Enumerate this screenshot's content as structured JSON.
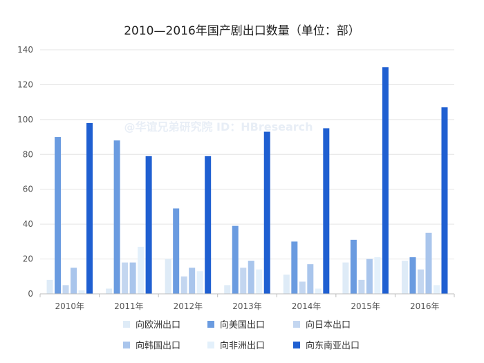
{
  "chart_data": {
    "type": "bar",
    "title": "2010—2016年国产剧出口数量（单位：部）",
    "watermark": "@华谊兄弟研究院 ID：HBresearch",
    "categories": [
      "2010年",
      "2011年",
      "2012年",
      "2013年",
      "2014年",
      "2015年",
      "2016年"
    ],
    "series": [
      {
        "name": "向欧洲出口",
        "color": "#deebf7",
        "values": [
          8,
          3,
          20,
          5,
          11,
          18,
          19
        ]
      },
      {
        "name": "向美国出口",
        "color": "#6a9be0",
        "values": [
          90,
          88,
          49,
          39,
          30,
          31,
          21
        ]
      },
      {
        "name": "向日本出口",
        "color": "#c3d6f0",
        "values": [
          5,
          18,
          10,
          15,
          7,
          8,
          14
        ]
      },
      {
        "name": "向韩国出口",
        "color": "#a9c5ec",
        "values": [
          15,
          18,
          15,
          19,
          17,
          20,
          35
        ]
      },
      {
        "name": "向非洲出口",
        "color": "#e3f0fb",
        "values": [
          2,
          27,
          13,
          14,
          3,
          21,
          5
        ]
      },
      {
        "name": "向东南亚出口",
        "color": "#1f5fd1",
        "values": [
          98,
          79,
          79,
          93,
          95,
          130,
          107
        ]
      }
    ],
    "ylim": [
      0,
      140
    ],
    "yticks": [
      0,
      20,
      40,
      60,
      80,
      100,
      120,
      140
    ],
    "grid": true,
    "legend_position": "bottom"
  }
}
